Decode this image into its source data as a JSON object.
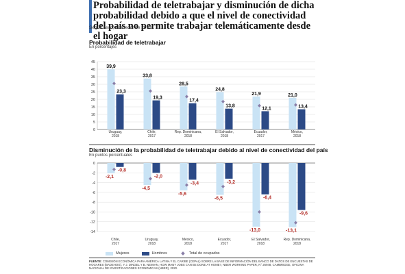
{
  "header": {
    "title": "Probabilidad de teletrabajar y disminución de dicha probabilidad debido a que el nivel de conectividad del país no permite trabajar telemáticamente desde el hogar",
    "subtitle": "Según sexo, alrededor de 2018"
  },
  "legend": {
    "women": "Mujeres",
    "men": "Hombres",
    "total": "Total de ocupados"
  },
  "colors": {
    "women": "#c9e3f5",
    "men": "#2c4a86",
    "total": "#8a7fa8",
    "negative_label": "#b5312b",
    "accent": "#3f6fb0"
  },
  "source": {
    "label": "FUENTE:",
    "text": "COMISIÓN ECONÓMICA PARA AMÉRICA LATINA Y EL CARIBE (CEPAL) SOBRE LA BASE DE INFORMACIÓN DEL BANCO DE DATOS DE ENCUESTAS DE HOGARES (BADEHOG), Y J. DINGEL Y B. NEIMAN, HOW MANY JOBS CAN BE DONE AT HOME?, NBER WORKING PAPER, N° 26948, CAMBRIDGE, OFICINA NACIONAL DE INVESTIGACIONES ECONÓMICAS (NBER), 2020."
  },
  "chart_data": [
    {
      "type": "bar",
      "title": "Probabilidad de teletrabajar",
      "ylabel": "En porcentajes",
      "ylim": [
        0,
        45
      ],
      "yticks": [
        0,
        5,
        10,
        15,
        20,
        25,
        30,
        35,
        40,
        45
      ],
      "categories": [
        [
          "Uruguay,",
          "2018"
        ],
        [
          "Chile,",
          "2017"
        ],
        [
          "Rep. Dominicana,",
          "2018"
        ],
        [
          "El Salvador,",
          "2018"
        ],
        [
          "Ecuador,",
          "2017"
        ],
        [
          "México,",
          "2018"
        ]
      ],
      "series": [
        {
          "name": "Mujeres",
          "values": [
            39.9,
            33.8,
            28.5,
            24.8,
            21.9,
            21.0
          ],
          "labels": [
            "39,9",
            "33,8",
            "28,5",
            "24,8",
            "21,9",
            "21,0"
          ]
        },
        {
          "name": "Hombres",
          "values": [
            23.3,
            19.3,
            17.4,
            13.8,
            12.1,
            13.4
          ],
          "labels": [
            "23,3",
            "19,3",
            "17,4",
            "13,8",
            "12,1",
            "13,4"
          ]
        },
        {
          "name": "Total de ocupados",
          "values": [
            30.5,
            25.5,
            21.8,
            18.5,
            15.8,
            16.3
          ]
        }
      ],
      "grid": true
    },
    {
      "type": "bar",
      "title": "Disminución de la probabilidad de teletrabajar debido al nivel de conectividad del país",
      "ylabel": "En puntos porcentuales",
      "ylim": [
        -14,
        0
      ],
      "yticks": [
        0,
        -2,
        -4,
        -6,
        -8,
        -10,
        -12,
        -14
      ],
      "categories": [
        [
          "Chile,",
          "2017"
        ],
        [
          "Uruguay,",
          "2018"
        ],
        [
          "México,",
          "2018"
        ],
        [
          "Ecuador,",
          "2017"
        ],
        [
          "El Salvador,",
          "2018"
        ],
        [
          "Rep. Dominicana,",
          "2018"
        ]
      ],
      "series": [
        {
          "name": "Mujeres",
          "values": [
            -2.1,
            -4.5,
            -5.6,
            -6.5,
            -13.0,
            -13.1
          ],
          "labels": [
            "-2,1",
            "-4,5",
            "-5,6",
            "-6,5",
            "-13,0",
            "-13,1"
          ]
        },
        {
          "name": "Hombres",
          "values": [
            -0.8,
            -2.0,
            -3.4,
            -3.2,
            -6.4,
            -9.6
          ],
          "labels": [
            "-0,8",
            "-2,0",
            "-3,4",
            "-3,2",
            "-6,4",
            "-9,6"
          ]
        },
        {
          "name": "Total de ocupados",
          "values": [
            -1.3,
            -3.2,
            -4.5,
            -4.8,
            -10.0,
            -12.2
          ]
        }
      ],
      "grid": true
    }
  ]
}
